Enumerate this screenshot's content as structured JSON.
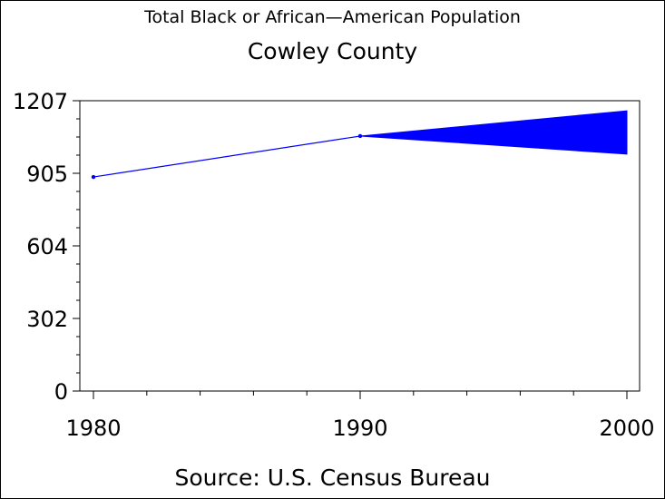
{
  "chart_data": {
    "type": "line",
    "title": "Total Black or African—American Population",
    "subtitle": "Cowley County",
    "footnote": "Source: U.S. Census Bureau",
    "x": [
      1980,
      1990,
      2000
    ],
    "series": [
      {
        "values": [
          890,
          1060,
          null
        ],
        "color": "#0000ff"
      }
    ],
    "range_band": {
      "x": [
        1990,
        2000
      ],
      "lower": [
        1060,
        985
      ],
      "upper": [
        1060,
        1165
      ],
      "color": "#0000ff"
    },
    "x_ticks": [
      "1980",
      "1990",
      "2000"
    ],
    "y_ticks": [
      "0",
      "302",
      "604",
      "905",
      "1207"
    ],
    "xlim": [
      1980,
      2000
    ],
    "ylim": [
      0,
      1207
    ],
    "grid": false
  }
}
